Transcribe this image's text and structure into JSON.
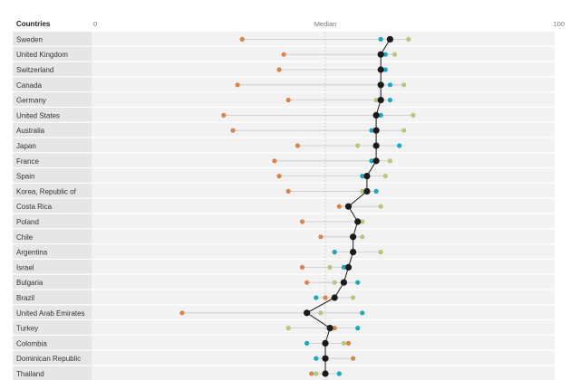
{
  "chart_data": {
    "type": "scatter",
    "header_label": "Countries",
    "x_ticks": [
      {
        "value": 0,
        "label": "0"
      },
      {
        "value": 50,
        "label": "Median"
      },
      {
        "value": 100,
        "label": "100"
      }
    ],
    "xlim": [
      0,
      100
    ],
    "median_value": 50,
    "series": [
      {
        "name": "orange",
        "color": "#d9844a"
      },
      {
        "name": "green",
        "color": "#b5c77c"
      },
      {
        "name": "teal",
        "color": "#1aa9bf"
      },
      {
        "name": "overall",
        "color": "#1a1a1a"
      }
    ],
    "rows": [
      {
        "country": "Sweden",
        "orange": 32,
        "green": 68,
        "teal": 62,
        "overall": 64
      },
      {
        "country": "United Kingdom",
        "orange": 41,
        "green": 65,
        "teal": 63,
        "overall": 62
      },
      {
        "country": "Switzerland",
        "orange": 40,
        "green": 62,
        "teal": 63,
        "overall": 62
      },
      {
        "country": "Canada",
        "orange": 31,
        "green": 67,
        "teal": 64,
        "overall": 62
      },
      {
        "country": "Germany",
        "orange": 42,
        "green": 61,
        "teal": 64,
        "overall": 62
      },
      {
        "country": "United States",
        "orange": 28,
        "green": 69,
        "teal": 62,
        "overall": 61
      },
      {
        "country": "Australia",
        "orange": 30,
        "green": 67,
        "teal": 60,
        "overall": 61
      },
      {
        "country": "Japan",
        "orange": 44,
        "green": 57,
        "teal": 66,
        "overall": 61
      },
      {
        "country": "France",
        "orange": 39,
        "green": 64,
        "teal": 60,
        "overall": 61
      },
      {
        "country": "Spain",
        "orange": 40,
        "green": 63,
        "teal": 58,
        "overall": 59
      },
      {
        "country": "Korea, Republic of",
        "orange": 42,
        "green": 58,
        "teal": 61,
        "overall": 59
      },
      {
        "country": "Costa Rica",
        "orange": 53,
        "green": 62,
        "teal": 55,
        "overall": 55
      },
      {
        "country": "Poland",
        "orange": 45,
        "green": 58,
        "teal": 57,
        "overall": 57
      },
      {
        "country": "Chile",
        "orange": 49,
        "green": 58,
        "teal": 56,
        "overall": 56
      },
      {
        "country": "Argentina",
        "orange": 52,
        "green": 62,
        "teal": 52,
        "overall": 56
      },
      {
        "country": "Israel",
        "orange": 45,
        "green": 51,
        "teal": 54,
        "overall": 55
      },
      {
        "country": "Bulgaria",
        "orange": 46,
        "green": 52,
        "teal": 57,
        "overall": 54
      },
      {
        "country": "Brazil",
        "orange": 50,
        "green": 56,
        "teal": 48,
        "overall": 52
      },
      {
        "country": "United Arab Emirates",
        "orange": 19,
        "green": 49,
        "teal": 58,
        "overall": 46
      },
      {
        "country": "Turkey",
        "orange": 52,
        "green": 42,
        "teal": 57,
        "overall": 51
      },
      {
        "country": "Colombia",
        "orange": 55,
        "green": 54,
        "teal": 46,
        "overall": 50
      },
      {
        "country": "Dominican Republic",
        "orange": 56,
        "green": 48,
        "teal": 48,
        "overall": 50
      },
      {
        "country": "Thailand",
        "orange": 47,
        "green": 48,
        "teal": 53,
        "overall": 50
      }
    ]
  }
}
